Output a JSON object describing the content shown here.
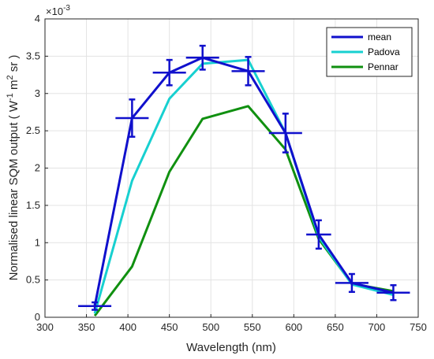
{
  "chart_data": {
    "type": "line",
    "xlabel": "Wavelength (nm)",
    "ylabel_parts": {
      "pre": "Normalised linear SQM output ( W",
      "sup1": "-1",
      "mid": " m",
      "sup2": "2",
      "post": " sr )"
    },
    "y_exponent_prefix": "×10",
    "y_exponent_power": "-3",
    "xlim": [
      300,
      750
    ],
    "ylim": [
      0,
      4
    ],
    "xticks": [
      "300",
      "350",
      "400",
      "450",
      "500",
      "550",
      "600",
      "650",
      "700",
      "750"
    ],
    "yticks": [
      "0",
      "0.5",
      "1",
      "1.5",
      "2",
      "2.5",
      "3",
      "3.5",
      "4"
    ],
    "grid": true,
    "legend_position": "top-right",
    "series": [
      {
        "name": "mean",
        "color": "#1010cc",
        "x": [
          360,
          405,
          450,
          490,
          545,
          590,
          630,
          670,
          720
        ],
        "y": [
          0.15,
          2.67,
          3.28,
          3.48,
          3.3,
          2.47,
          1.11,
          0.46,
          0.33
        ],
        "y_err": [
          0.05,
          0.25,
          0.17,
          0.16,
          0.19,
          0.26,
          0.19,
          0.12,
          0.1
        ],
        "x_err": [
          20,
          20,
          20,
          20,
          20,
          20,
          15,
          20,
          20
        ]
      },
      {
        "name": "Padova",
        "color": "#17d0d0",
        "x": [
          360,
          405,
          450,
          490,
          545,
          590,
          630,
          670,
          720
        ],
        "y": [
          0.05,
          1.83,
          2.93,
          3.4,
          3.45,
          2.47,
          1.08,
          0.44,
          0.3
        ]
      },
      {
        "name": "Pennar",
        "color": "#109010",
        "x": [
          360,
          405,
          450,
          490,
          545,
          590,
          630,
          670,
          720
        ],
        "y": [
          0.02,
          0.68,
          1.95,
          2.66,
          2.83,
          2.25,
          1.05,
          0.45,
          0.35
        ]
      }
    ]
  }
}
